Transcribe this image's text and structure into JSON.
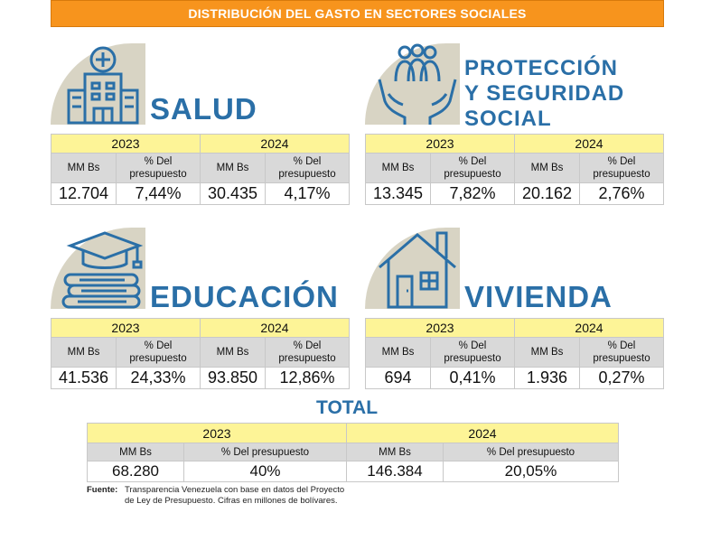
{
  "banner": "DISTRIBUCIÓN DEL GASTO EN SECTORES SOCIALES",
  "headers": {
    "y2023": "2023",
    "y2024": "2024",
    "mm": "MM Bs",
    "pct_l1": "% Del",
    "pct_l2": "presupuesto",
    "pct_full": "% Del presupuesto"
  },
  "sectors": [
    {
      "title": "SALUD",
      "icon": "hospital-icon",
      "v2023_mm": "12.704",
      "v2023_pct": "7,44%",
      "v2024_mm": "30.435",
      "v2024_pct": "4,17%"
    },
    {
      "title_lines": [
        "PROTECCIÓN",
        "Y SEGURIDAD",
        "SOCIAL"
      ],
      "icon": "family-care-icon",
      "v2023_mm": "13.345",
      "v2023_pct": "7,82%",
      "v2024_mm": "20.162",
      "v2024_pct": "2,76%"
    },
    {
      "title": "EDUCACIÓN",
      "icon": "graduation-books-icon",
      "v2023_mm": "41.536",
      "v2023_pct": "24,33%",
      "v2024_mm": "93.850",
      "v2024_pct": "12,86%"
    },
    {
      "title": "VIVIENDA",
      "icon": "house-icon",
      "v2023_mm": "694",
      "v2023_pct": "0,41%",
      "v2024_mm": "1.936",
      "v2024_pct": "0,27%"
    }
  ],
  "total": {
    "title": "TOTAL",
    "v2023_mm": "68.280",
    "v2023_pct": "40%",
    "v2024_mm": "146.384",
    "v2024_pct": "20,05%"
  },
  "source": {
    "label": "Fuente:",
    "line1": "Transparencia Venezuela con base en datos del Proyecto",
    "line2": "de Ley de Presupuesto. Cifras en millones de bolívares."
  },
  "colors": {
    "banner": "#f7941d",
    "title": "#2a6fa7",
    "year_row": "#fdf497",
    "header_row": "#d9d9d9",
    "icon_bg": "#d8d4c4"
  }
}
